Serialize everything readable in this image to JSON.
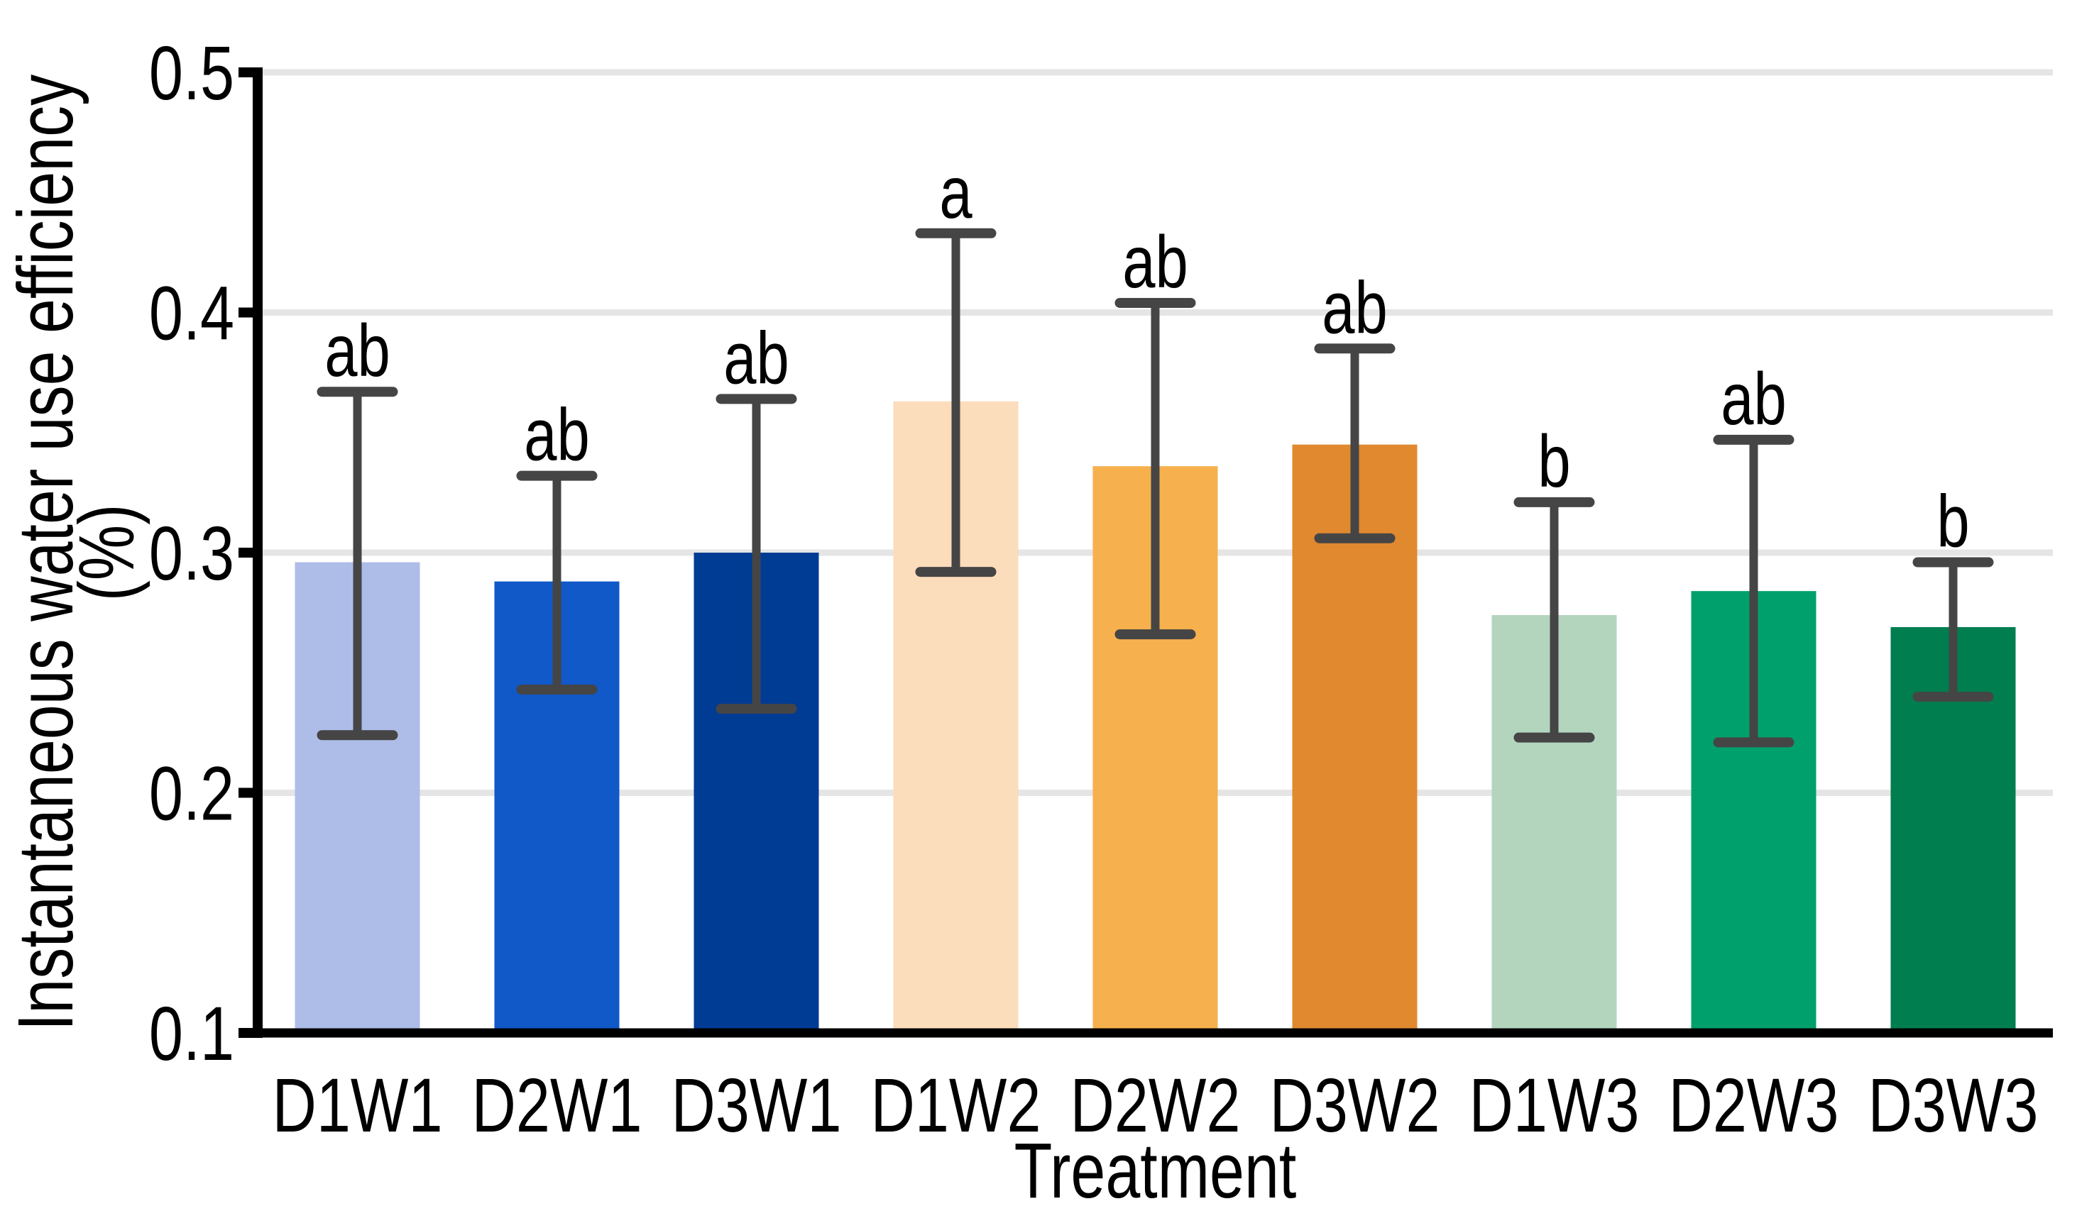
{
  "figure": {
    "background": "#FFFFFF",
    "type_description": "bar chart with error bars and significance letters"
  },
  "chart_data": {
    "type": "bar",
    "title": "",
    "xlabel": "Treatment",
    "ylabel_line1": "Instantaneous water use efficiency",
    "ylabel_line2": "(%)",
    "ylim": [
      0.1,
      0.5
    ],
    "yticks": [
      0.1,
      0.2,
      0.3,
      0.4,
      0.5
    ],
    "ytick_labels": [
      "0.1",
      "0.2",
      "0.3",
      "0.4",
      "0.5"
    ],
    "grid": "horizontal",
    "legend": "none",
    "categories": [
      "D1W1",
      "D2W1",
      "D3W1",
      "D1W2",
      "D2W2",
      "D3W2",
      "D1W3",
      "D2W3",
      "D3W3"
    ],
    "values": [
      0.296,
      0.288,
      0.3,
      0.363,
      0.336,
      0.345,
      0.274,
      0.284,
      0.269
    ],
    "error_low": [
      0.224,
      0.243,
      0.235,
      0.292,
      0.266,
      0.306,
      0.223,
      0.221,
      0.24
    ],
    "error_high": [
      0.367,
      0.332,
      0.364,
      0.433,
      0.404,
      0.385,
      0.321,
      0.347,
      0.296
    ],
    "sig_letters": [
      "ab",
      "ab",
      "ab",
      "a",
      "ab",
      "ab",
      "b",
      "ab",
      "b"
    ],
    "bar_colors": [
      "#AEBCE8",
      "#1158C9",
      "#003B94",
      "#FBDCBB",
      "#F6B04D",
      "#E0892F",
      "#B3D5BE",
      "#00A06C",
      "#007E4F"
    ],
    "error_bar_color": "#454545",
    "gridline_color": "#E5E5E5",
    "axis_color": "#000000",
    "text_color": "#000000"
  }
}
